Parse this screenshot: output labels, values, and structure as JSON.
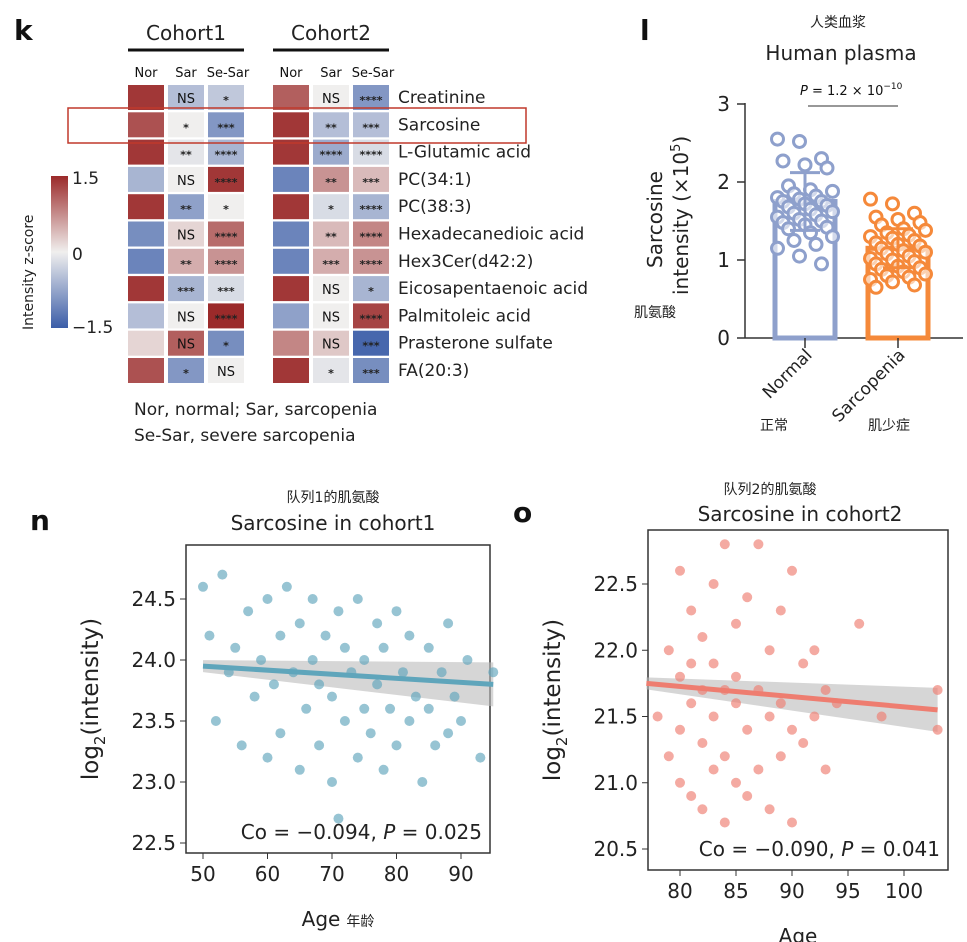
{
  "panels": {
    "k": "k",
    "l": "l",
    "n": "n",
    "o": "o"
  },
  "chart_data": [
    {
      "type": "heatmap",
      "panel": "k",
      "groups": [
        "Cohort1",
        "Cohort2"
      ],
      "columns": [
        "Nor",
        "Sar",
        "Se-Sar"
      ],
      "colorbar": {
        "label": "Intensity z-score",
        "ticks": [
          "1.5",
          "0",
          "−1.5"
        ],
        "range": [
          -1.5,
          1.5
        ],
        "colors": [
          "#3b5da8",
          "#f0efee",
          "#9b2a2a"
        ]
      },
      "rows": [
        {
          "name": "Creatinine",
          "c1": [
            1.4,
            -0.5,
            -0.4
          ],
          "c1_sig": [
            "",
            "NS",
            "*"
          ],
          "c2": [
            1.1,
            0.0,
            -0.9
          ],
          "c2_sig": [
            "",
            "NS",
            "****"
          ]
        },
        {
          "name": "Sarcosine",
          "c1": [
            1.2,
            0.0,
            -0.9
          ],
          "c1_sig": [
            "",
            "*",
            "***"
          ],
          "c2": [
            1.4,
            -0.5,
            -0.5
          ],
          "c2_sig": [
            "",
            "**",
            "***"
          ]
        },
        {
          "name": "L-Glutamic acid",
          "c1": [
            1.4,
            -0.1,
            -0.6
          ],
          "c1_sig": [
            "",
            "**",
            "****"
          ],
          "c2": [
            1.4,
            -0.7,
            -0.2
          ],
          "c2_sig": [
            "",
            "****",
            "****"
          ]
        },
        {
          "name": "PC(34:1)",
          "c1": [
            -0.6,
            0.0,
            1.4
          ],
          "c1_sig": [
            "",
            "NS",
            "****"
          ],
          "c2": [
            -1.1,
            0.7,
            0.4
          ],
          "c2_sig": [
            "",
            "**",
            "***"
          ]
        },
        {
          "name": "PC(38:3)",
          "c1": [
            1.4,
            -0.8,
            0.0
          ],
          "c1_sig": [
            "",
            "**",
            "*"
          ],
          "c2": [
            1.4,
            -0.2,
            -0.6
          ],
          "c2_sig": [
            "",
            "*",
            "****"
          ]
        },
        {
          "name": "Hexadecanedioic acid",
          "c1": [
            -1.0,
            0.2,
            1.0
          ],
          "c1_sig": [
            "",
            "NS",
            "****"
          ],
          "c2": [
            -1.1,
            0.4,
            0.8
          ],
          "c2_sig": [
            "",
            "**",
            "****"
          ]
        },
        {
          "name": "Hex3Cer(d42:2)",
          "c1": [
            -1.1,
            0.5,
            0.7
          ],
          "c1_sig": [
            "",
            "**",
            "****"
          ],
          "c2": [
            -1.1,
            0.5,
            0.7
          ],
          "c2_sig": [
            "",
            "***",
            "****"
          ]
        },
        {
          "name": "Eicosapentaenoic acid",
          "c1": [
            1.4,
            -0.6,
            -0.2
          ],
          "c1_sig": [
            "",
            "***",
            "***"
          ],
          "c2": [
            1.4,
            0.0,
            -0.6
          ],
          "c2_sig": [
            "",
            "NS",
            "*"
          ]
        },
        {
          "name": "Palmitoleic acid",
          "c1": [
            -0.5,
            0.0,
            1.5
          ],
          "c1_sig": [
            "",
            "NS",
            "****"
          ],
          "c2": [
            -0.8,
            0.0,
            1.3
          ],
          "c2_sig": [
            "",
            "NS",
            "****"
          ]
        },
        {
          "name": "Prasterone sulfate",
          "c1": [
            0.2,
            1.1,
            -1.0
          ],
          "c1_sig": [
            "",
            "NS",
            "*"
          ],
          "c2": [
            0.8,
            0.3,
            -1.4
          ],
          "c2_sig": [
            "",
            "NS",
            "***"
          ]
        },
        {
          "name": "FA(20:3)",
          "c1": [
            1.2,
            -0.9,
            0.0
          ],
          "c1_sig": [
            "",
            "*",
            "NS"
          ],
          "c2": [
            1.4,
            -0.1,
            -1.0
          ],
          "c2_sig": [
            "",
            "*",
            "***"
          ]
        }
      ],
      "highlight_row": "Sarcosine",
      "highlight_color": "#c0392b",
      "footnote": [
        "Nor, normal; Sar, sarcopenia",
        "Se-Sar, severe sarcopenia"
      ]
    },
    {
      "type": "bar",
      "panel": "l",
      "title_cn": "人类血浆",
      "title": "Human plasma",
      "ylabel": [
        "Sarcosine",
        "intensity (×10",
        "5",
        ")"
      ],
      "ylabel_cn": "肌氨酸",
      "ylim": [
        0,
        3
      ],
      "yticks": [
        "0",
        "1",
        "2",
        "3"
      ],
      "categories": [
        "Normal",
        "Sarcopenia"
      ],
      "categories_cn": [
        "正常",
        "肌少症"
      ],
      "values": [
        1.75,
        1.15
      ],
      "errors": [
        0.37,
        0.25
      ],
      "colors": [
        "#8ea0cc",
        "#f5893a"
      ],
      "annotation": {
        "p_label": "P",
        "p_text": " = 1.2 × 10",
        "p_exp": "−10"
      },
      "points": [
        [
          2.55,
          2.52,
          2.3,
          2.27,
          2.22,
          2.18,
          1.95,
          1.9,
          1.88,
          1.85,
          1.82,
          1.8,
          1.78,
          1.75,
          1.75,
          1.72,
          1.7,
          1.68,
          1.65,
          1.62,
          1.6,
          1.58,
          1.55,
          1.52,
          1.5,
          1.48,
          1.45,
          1.42,
          1.4,
          1.35,
          1.3,
          1.25,
          1.2,
          1.15,
          1.05,
          0.95
        ],
        [
          1.78,
          1.72,
          1.6,
          1.55,
          1.52,
          1.48,
          1.45,
          1.4,
          1.38,
          1.35,
          1.32,
          1.3,
          1.28,
          1.25,
          1.22,
          1.2,
          1.18,
          1.15,
          1.12,
          1.1,
          1.08,
          1.05,
          1.02,
          1.0,
          0.98,
          0.95,
          0.92,
          0.9,
          0.88,
          0.85,
          0.82,
          0.8,
          0.78,
          0.75,
          0.72,
          0.68,
          0.65
        ]
      ]
    },
    {
      "type": "scatter",
      "panel": "n",
      "title_cn": "队列1的肌氨酸",
      "title": "Sarcosine in cohort1",
      "xlabel": "Age",
      "xlabel_cn": "年龄",
      "ylabel": "log",
      "ylabel_sub": "2",
      "ylabel_rest": "(intensity)",
      "xlim": [
        48,
        96
      ],
      "ylim": [
        22.4,
        24.75
      ],
      "xticks": [
        50,
        60,
        70,
        80,
        90
      ],
      "yticks": [
        22.5,
        23.0,
        23.5,
        24.0,
        24.5
      ],
      "color": "#5fa5bb",
      "trend": [
        [
          50,
          23.95
        ],
        [
          95,
          23.8
        ]
      ],
      "stat": {
        "co": "Co = −0.094, ",
        "p": "P",
        "pv": " = 0.025"
      },
      "points": [
        [
          50,
          24.6
        ],
        [
          51,
          24.2
        ],
        [
          52,
          23.5
        ],
        [
          53,
          24.7
        ],
        [
          54,
          23.9
        ],
        [
          55,
          24.1
        ],
        [
          56,
          23.3
        ],
        [
          57,
          24.4
        ],
        [
          58,
          23.7
        ],
        [
          59,
          24.0
        ],
        [
          60,
          23.2
        ],
        [
          60,
          24.5
        ],
        [
          61,
          23.8
        ],
        [
          62,
          24.2
        ],
        [
          62,
          23.4
        ],
        [
          63,
          24.6
        ],
        [
          64,
          23.9
        ],
        [
          65,
          23.1
        ],
        [
          65,
          24.3
        ],
        [
          66,
          23.6
        ],
        [
          67,
          24.0
        ],
        [
          67,
          24.5
        ],
        [
          68,
          23.3
        ],
        [
          68,
          23.8
        ],
        [
          69,
          24.2
        ],
        [
          70,
          23.0
        ],
        [
          70,
          23.7
        ],
        [
          71,
          24.4
        ],
        [
          71,
          22.7
        ],
        [
          72,
          23.5
        ],
        [
          72,
          24.1
        ],
        [
          73,
          23.9
        ],
        [
          74,
          23.2
        ],
        [
          74,
          24.5
        ],
        [
          75,
          23.6
        ],
        [
          75,
          24.0
        ],
        [
          76,
          23.4
        ],
        [
          77,
          24.3
        ],
        [
          77,
          23.8
        ],
        [
          78,
          23.1
        ],
        [
          78,
          24.1
        ],
        [
          79,
          23.6
        ],
        [
          80,
          24.4
        ],
        [
          80,
          23.3
        ],
        [
          81,
          23.9
        ],
        [
          82,
          23.5
        ],
        [
          82,
          24.2
        ],
        [
          83,
          23.7
        ],
        [
          84,
          23.0
        ],
        [
          85,
          24.1
        ],
        [
          85,
          23.6
        ],
        [
          86,
          23.3
        ],
        [
          87,
          23.9
        ],
        [
          88,
          24.3
        ],
        [
          88,
          23.4
        ],
        [
          89,
          23.7
        ],
        [
          90,
          23.5
        ],
        [
          91,
          24.0
        ],
        [
          93,
          23.2
        ],
        [
          95,
          23.9
        ]
      ]
    },
    {
      "type": "scatter",
      "panel": "o",
      "title_cn": "队列2的肌氨酸",
      "title": "Sarcosine in cohort2",
      "xlabel": "Age",
      "ylabel": "log",
      "ylabel_sub": "2",
      "ylabel_rest": "(intensity)",
      "xlim": [
        77,
        104
      ],
      "ylim": [
        20.35,
        22.75
      ],
      "xticks": [
        80,
        85,
        90,
        95,
        100
      ],
      "yticks": [
        20.5,
        21.0,
        21.5,
        22.0,
        22.5
      ],
      "color": "#ee7d70",
      "trend": [
        [
          77,
          21.75
        ],
        [
          103,
          21.55
        ]
      ],
      "stat": {
        "co": "Co = −0.090, ",
        "p": "P",
        "pv": " = 0.041"
      },
      "points": [
        [
          78,
          21.5
        ],
        [
          79,
          22.0
        ],
        [
          79,
          21.2
        ],
        [
          80,
          22.6
        ],
        [
          80,
          21.8
        ],
        [
          80,
          21.0
        ],
        [
          80,
          21.4
        ],
        [
          81,
          22.3
        ],
        [
          81,
          21.6
        ],
        [
          81,
          20.9
        ],
        [
          81,
          21.9
        ],
        [
          82,
          22.1
        ],
        [
          82,
          21.3
        ],
        [
          82,
          20.8
        ],
        [
          82,
          21.7
        ],
        [
          83,
          22.5
        ],
        [
          83,
          21.5
        ],
        [
          83,
          21.1
        ],
        [
          83,
          21.9
        ],
        [
          84,
          22.8
        ],
        [
          84,
          21.7
        ],
        [
          84,
          21.2
        ],
        [
          84,
          20.7
        ],
        [
          85,
          22.2
        ],
        [
          85,
          21.6
        ],
        [
          85,
          21.0
        ],
        [
          85,
          21.8
        ],
        [
          86,
          22.4
        ],
        [
          86,
          21.4
        ],
        [
          86,
          20.9
        ],
        [
          87,
          22.8
        ],
        [
          87,
          21.7
        ],
        [
          87,
          21.1
        ],
        [
          88,
          22.0
        ],
        [
          88,
          21.5
        ],
        [
          88,
          20.8
        ],
        [
          89,
          22.3
        ],
        [
          89,
          21.6
        ],
        [
          89,
          21.2
        ],
        [
          90,
          22.6
        ],
        [
          90,
          21.4
        ],
        [
          90,
          20.7
        ],
        [
          91,
          21.9
        ],
        [
          91,
          21.3
        ],
        [
          92,
          22.0
        ],
        [
          92,
          21.5
        ],
        [
          93,
          21.7
        ],
        [
          93,
          21.1
        ],
        [
          94,
          21.6
        ],
        [
          96,
          22.2
        ],
        [
          98,
          21.5
        ],
        [
          103,
          21.7
        ],
        [
          103,
          21.4
        ]
      ]
    }
  ]
}
